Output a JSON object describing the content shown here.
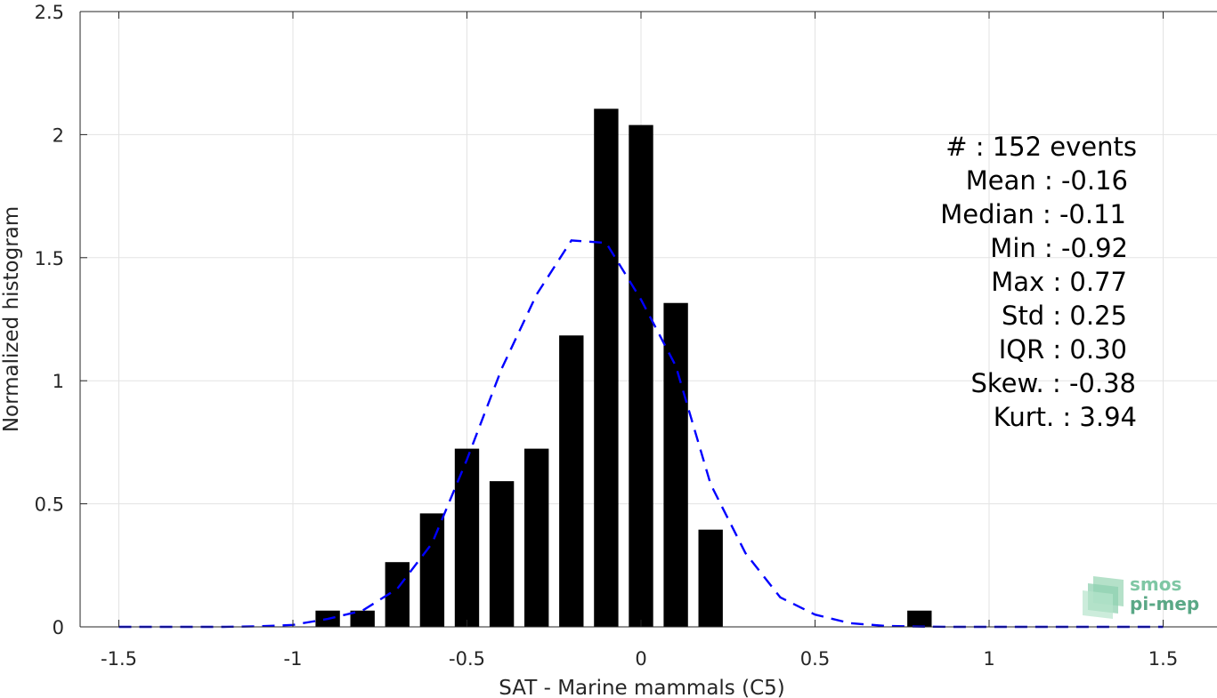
{
  "chart_data": {
    "type": "bar",
    "xlabel": "SAT - Marine mammals (C5)",
    "ylabel": "Normalized histogram",
    "xlim": [
      -1.6,
      1.6
    ],
    "ylim": [
      0,
      2.5
    ],
    "grid": true,
    "x_ticks": [
      -1.5,
      -1,
      -0.5,
      0,
      0.5,
      1,
      1.5
    ],
    "x_tick_labels": [
      "-1.5",
      "-1",
      "-0.5",
      "0",
      "0.5",
      "1",
      "1.5"
    ],
    "y_ticks": [
      0,
      0.5,
      1,
      1.5,
      2,
      2.5
    ],
    "y_tick_labels": [
      "0",
      "0.5",
      "1",
      "1.5",
      "2",
      "2.5"
    ],
    "bar_width": 0.07,
    "bar_color": "#000000",
    "bars": [
      {
        "x": -0.9,
        "y": 0.066
      },
      {
        "x": -0.8,
        "y": 0.066
      },
      {
        "x": -0.7,
        "y": 0.263
      },
      {
        "x": -0.6,
        "y": 0.461
      },
      {
        "x": -0.5,
        "y": 0.724
      },
      {
        "x": -0.4,
        "y": 0.592
      },
      {
        "x": -0.3,
        "y": 0.724
      },
      {
        "x": -0.2,
        "y": 1.184
      },
      {
        "x": -0.1,
        "y": 2.105
      },
      {
        "x": 0.0,
        "y": 2.039
      },
      {
        "x": 0.1,
        "y": 1.316
      },
      {
        "x": 0.2,
        "y": 0.395
      },
      {
        "x": 0.8,
        "y": 0.066
      }
    ],
    "fit_curve": {
      "color": "#0000ff",
      "style": "dashed",
      "x": [
        -1.5,
        -1.4,
        -1.3,
        -1.2,
        -1.1,
        -1.0,
        -0.9,
        -0.8,
        -0.7,
        -0.6,
        -0.5,
        -0.4,
        -0.3,
        -0.2,
        -0.1,
        0.0,
        0.1,
        0.2,
        0.3,
        0.4,
        0.5,
        0.6,
        0.7,
        0.8,
        0.9,
        1.0,
        1.1,
        1.2,
        1.3,
        1.4,
        1.5
      ],
      "y": [
        0.0,
        0.0,
        0.0,
        0.0,
        0.002,
        0.008,
        0.032,
        0.066,
        0.155,
        0.34,
        0.68,
        1.05,
        1.35,
        1.57,
        1.56,
        1.33,
        1.06,
        0.58,
        0.3,
        0.12,
        0.05,
        0.015,
        0.004,
        0.001,
        0.0,
        0.0,
        0.0,
        0.0,
        0.0,
        0.0,
        0.0
      ]
    },
    "stats": [
      "#  : 152 events",
      "Mean : -0.16",
      "Median : -0.11",
      "Min : -0.92",
      "Max : 0.77",
      "Std : 0.25",
      "IQR : 0.30",
      "Skew. : -0.38",
      "Kurt. : 3.94"
    ]
  },
  "logo": {
    "line1": "smos",
    "line2": "pi-mep",
    "color1": "#7fc7a4",
    "color2": "#5aa886"
  }
}
